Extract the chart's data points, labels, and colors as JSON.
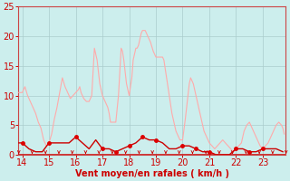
{
  "xlabel": "Vent moyen/en rafales ( km/h )",
  "bg_color": "#cceeed",
  "grid_color": "#aacccc",
  "spine_color": "#cc4444",
  "xlabel_color": "#cc0000",
  "tick_color": "#cc0000",
  "xmin": 13.85,
  "xmax": 23.85,
  "ymin": 0,
  "ymax": 25,
  "yticks": [
    0,
    5,
    10,
    15,
    20,
    25
  ],
  "xticks": [
    14,
    15,
    16,
    17,
    18,
    19,
    20,
    21,
    22,
    23
  ],
  "gust_x": [
    13.87,
    14.0,
    14.1,
    14.2,
    14.3,
    14.4,
    14.5,
    14.6,
    14.7,
    14.75,
    14.8,
    14.9,
    15.0,
    15.1,
    15.2,
    15.3,
    15.4,
    15.5,
    15.6,
    15.7,
    15.75,
    15.8,
    15.9,
    16.0,
    16.1,
    16.15,
    16.2,
    16.3,
    16.4,
    16.5,
    16.6,
    16.65,
    16.7,
    16.75,
    16.8,
    16.9,
    17.0,
    17.1,
    17.2,
    17.25,
    17.3,
    17.4,
    17.5,
    17.6,
    17.65,
    17.7,
    17.75,
    17.8,
    17.9,
    18.0,
    18.1,
    18.15,
    18.2,
    18.25,
    18.3,
    18.35,
    18.4,
    18.45,
    18.5,
    18.55,
    18.6,
    18.65,
    18.7,
    18.75,
    18.8,
    18.9,
    19.0,
    19.1,
    19.2,
    19.25,
    19.3,
    19.4,
    19.5,
    19.6,
    19.7,
    19.75,
    19.8,
    19.9,
    20.0,
    20.1,
    20.2,
    20.25,
    20.3,
    20.4,
    20.5,
    20.6,
    20.7,
    20.75,
    20.8,
    20.9,
    21.0,
    21.1,
    21.2,
    21.3,
    21.4,
    21.5,
    21.6,
    21.7,
    21.8,
    21.9,
    22.0,
    22.1,
    22.2,
    22.25,
    22.3,
    22.4,
    22.5,
    22.6,
    22.7,
    22.8,
    22.9,
    23.0,
    23.1,
    23.2,
    23.3,
    23.4,
    23.5,
    23.6,
    23.7,
    23.75,
    23.8
  ],
  "gust_y": [
    10.5,
    10.5,
    11.5,
    10.0,
    9.0,
    8.0,
    7.0,
    5.5,
    4.5,
    3.5,
    2.5,
    1.5,
    2.0,
    3.5,
    6.0,
    8.0,
    10.5,
    13.0,
    11.5,
    10.5,
    10.0,
    9.5,
    10.0,
    10.5,
    11.0,
    11.5,
    10.5,
    9.5,
    9.0,
    9.0,
    10.0,
    14.0,
    18.0,
    17.0,
    16.0,
    12.0,
    10.0,
    9.0,
    8.0,
    7.0,
    5.5,
    5.5,
    5.5,
    10.0,
    14.0,
    18.0,
    17.5,
    16.0,
    12.0,
    10.0,
    13.0,
    16.0,
    17.0,
    18.0,
    18.0,
    18.5,
    19.5,
    20.5,
    21.0,
    21.0,
    21.0,
    20.5,
    20.0,
    19.5,
    19.0,
    17.5,
    16.5,
    16.5,
    16.5,
    16.5,
    16.0,
    13.0,
    10.0,
    7.0,
    5.0,
    4.0,
    3.5,
    2.5,
    2.5,
    6.0,
    10.0,
    12.0,
    13.0,
    12.0,
    10.0,
    8.0,
    6.0,
    5.0,
    4.0,
    3.0,
    2.0,
    1.5,
    1.0,
    1.5,
    2.0,
    2.5,
    2.0,
    1.5,
    1.0,
    0.5,
    1.0,
    1.5,
    2.0,
    3.0,
    4.0,
    5.0,
    5.5,
    4.5,
    3.5,
    2.5,
    1.5,
    1.0,
    1.5,
    2.0,
    3.0,
    4.0,
    5.0,
    5.5,
    5.0,
    4.5,
    3.5
  ],
  "wind_x": [
    13.87,
    14.0,
    14.25,
    14.5,
    14.75,
    15.0,
    15.25,
    15.5,
    15.75,
    16.0,
    16.25,
    16.5,
    16.75,
    17.0,
    17.25,
    17.5,
    17.75,
    18.0,
    18.25,
    18.5,
    18.75,
    19.0,
    19.25,
    19.5,
    19.75,
    20.0,
    20.25,
    20.5,
    20.75,
    21.0,
    21.25,
    21.5,
    21.75,
    22.0,
    22.25,
    22.5,
    22.75,
    23.0,
    23.25,
    23.5,
    23.75
  ],
  "wind_y": [
    2.0,
    2.0,
    1.0,
    0.5,
    0.5,
    2.0,
    2.0,
    2.0,
    2.0,
    3.0,
    2.0,
    1.0,
    2.5,
    1.0,
    1.0,
    0.5,
    1.0,
    1.5,
    2.0,
    3.0,
    2.5,
    2.5,
    2.0,
    1.0,
    1.0,
    1.5,
    1.5,
    1.0,
    0.5,
    0.5,
    0.0,
    0.0,
    0.0,
    1.0,
    1.0,
    0.5,
    0.5,
    1.0,
    1.0,
    1.0,
    0.5
  ],
  "wind_dot_x": [
    14.0,
    15.0,
    16.0,
    17.0,
    17.5,
    18.0,
    18.5,
    19.0,
    20.0,
    20.5,
    21.0,
    22.0,
    22.5,
    23.0
  ],
  "wind_dot_y": [
    2.0,
    2.0,
    3.0,
    1.0,
    0.5,
    1.5,
    3.0,
    2.5,
    1.5,
    1.0,
    0.5,
    1.0,
    0.5,
    1.0
  ],
  "gust_line_color": "#ffaaaa",
  "wind_line_color": "#cc0000",
  "dot_color": "#dd0000",
  "bottom_line_color": "#cc0000",
  "arrow_color": "#cc0000"
}
